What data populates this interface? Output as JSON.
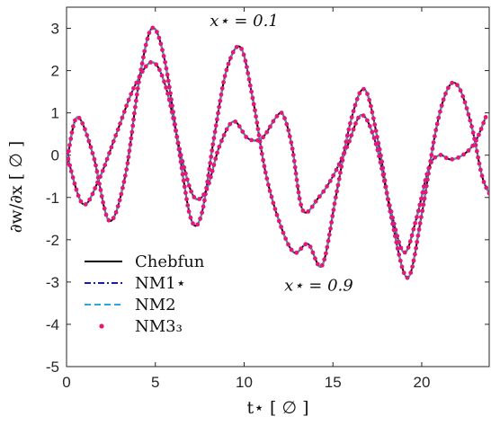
{
  "chart_data": {
    "type": "line",
    "xlabel": "t⋆ [ ∅ ]",
    "ylabel": "∂w/∂x [ ∅ ]",
    "xlim": [
      0,
      23.8
    ],
    "ylim": [
      -5,
      3.5
    ],
    "x_ticks": [
      "0",
      "5",
      "10",
      "15",
      "20"
    ],
    "y_ticks": [
      "3",
      "2",
      "1",
      "0",
      "-1",
      "-2",
      "-3",
      "-4",
      "-5"
    ],
    "grid": false,
    "legend_position": "lower-left",
    "annotations": [
      {
        "text": "x⋆ = 0.1",
        "at": [
          10.0,
          3.05
        ]
      },
      {
        "text": "x⋆ = 0.9",
        "at": [
          14.2,
          -3.2
        ]
      }
    ],
    "legend": [
      {
        "label": "Chebfun",
        "style": "solid",
        "color": "#000000"
      },
      {
        "label": "NM1⋆",
        "style": "dashdot",
        "color": "#1a1aa6"
      },
      {
        "label": "NM2",
        "style": "dashed",
        "color": "#29a8e0"
      },
      {
        "label": "NM3₃",
        "style": "dots",
        "color": "#e8176f"
      }
    ],
    "series": [
      {
        "x": [
          0,
          0.6,
          1.5,
          2.4,
          3.3,
          4.1,
          4.8,
          5.5,
          6.3,
          7.0,
          7.6,
          8.3,
          9.0,
          9.8,
          10.5,
          11.2,
          12.0,
          12.8,
          13.6,
          14.4,
          15.2,
          16.0,
          16.8,
          17.6,
          18.3,
          19.2,
          20.0,
          20.8,
          21.5,
          22.1,
          22.8,
          23.4,
          23.8
        ],
        "y": [
          -0.2,
          0.9,
          0.0,
          -1.55,
          -0.5,
          1.8,
          3.0,
          2.3,
          0.2,
          -1.5,
          -1.4,
          0.4,
          2.0,
          2.55,
          1.3,
          -0.4,
          -1.6,
          -2.3,
          -2.1,
          -2.6,
          -0.9,
          0.8,
          1.55,
          0.2,
          -1.5,
          -2.9,
          -1.4,
          0.6,
          1.6,
          1.6,
          0.7,
          -0.5,
          -0.9
        ]
      },
      {
        "x": [
          0,
          0.9,
          1.8,
          2.8,
          3.8,
          4.8,
          5.6,
          6.5,
          7.2,
          7.9,
          8.6,
          9.4,
          10.2,
          11.0,
          11.8,
          12.2,
          12.7,
          13.3,
          14.2,
          15.0,
          15.8,
          16.6,
          17.4,
          18.2,
          19.0,
          19.7,
          20.4,
          21.0,
          21.6,
          22.3,
          23.0,
          23.6
        ],
        "y": [
          0.05,
          -1.15,
          -0.6,
          0.5,
          1.6,
          2.2,
          1.6,
          -0.1,
          -1.0,
          -0.8,
          0.2,
          0.8,
          0.4,
          0.4,
          0.9,
          0.95,
          0.2,
          -1.3,
          -1.0,
          -0.5,
          0.2,
          0.95,
          0.3,
          -1.2,
          -2.3,
          -1.5,
          -0.3,
          0.0,
          -0.1,
          0.0,
          0.3,
          0.9
        ]
      }
    ]
  }
}
